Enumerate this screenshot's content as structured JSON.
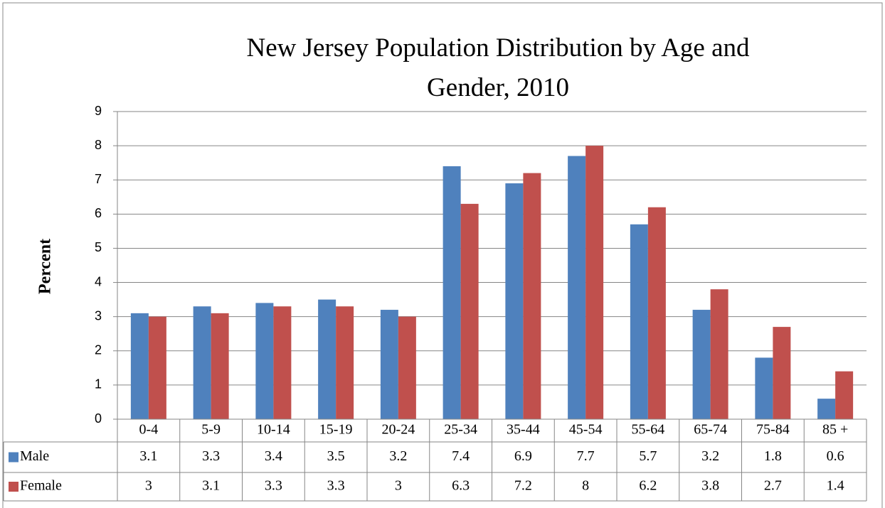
{
  "chart_data": {
    "type": "bar",
    "title": "New Jersey Population Distribution by Age and Gender, 2010",
    "y_label": "Percent",
    "categories": [
      "0-4",
      "5-9",
      "10-14",
      "15-19",
      "20-24",
      "25-34",
      "35-44",
      "45-54",
      "55-64",
      "65-74",
      "75-84",
      "85 +"
    ],
    "series": [
      {
        "name": "Male",
        "color": "#4f81bd",
        "values": [
          3.1,
          3.3,
          3.4,
          3.5,
          3.2,
          7.4,
          6.9,
          7.7,
          5.7,
          3.2,
          1.8,
          0.6
        ]
      },
      {
        "name": "Female",
        "color": "#c0504d",
        "values": [
          3,
          3.1,
          3.3,
          3.3,
          3,
          6.3,
          7.2,
          8,
          6.2,
          3.8,
          2.7,
          1.4
        ]
      }
    ],
    "ylim": [
      0,
      9
    ],
    "yticks": [
      0,
      1,
      2,
      3,
      4,
      5,
      6,
      7,
      8,
      9
    ],
    "grid": true,
    "data_table": true
  }
}
